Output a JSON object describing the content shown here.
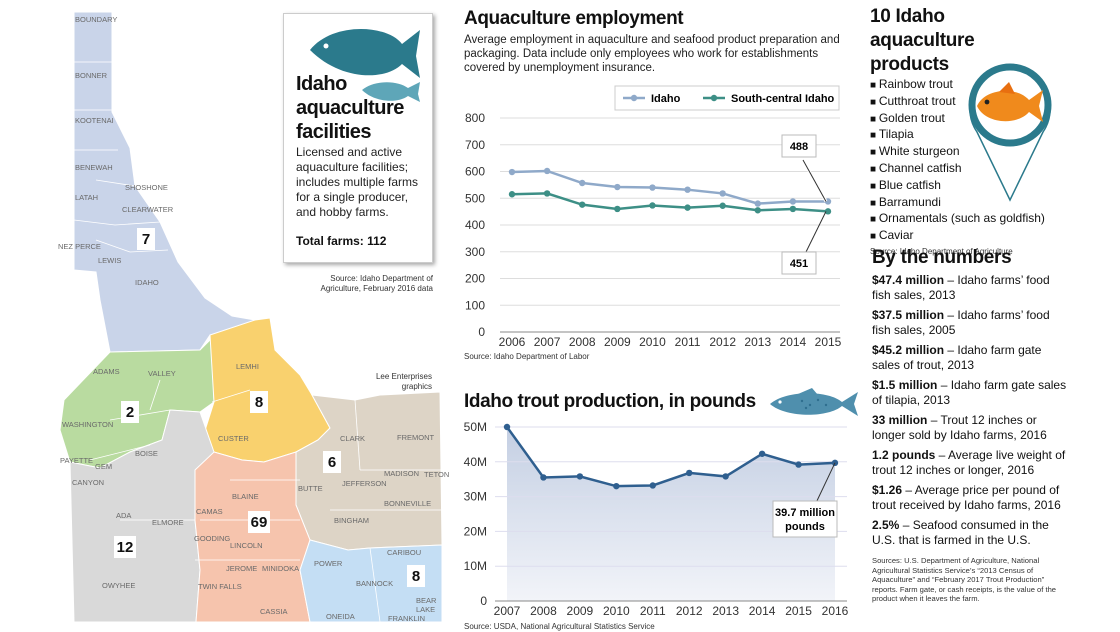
{
  "map": {
    "counties": [
      "BOUNDARY",
      "BONNER",
      "KOOTENAI",
      "BENEWAH",
      "SHOSHONE",
      "LATAH",
      "CLEARWATER",
      "NEZ PERCE",
      "LEWIS",
      "IDAHO",
      "ADAMS",
      "VALLEY",
      "LEMHI",
      "WASHINGTON",
      "PAYETTE",
      "GEM",
      "BOISE",
      "CUSTER",
      "CLARK",
      "FREMONT",
      "CANYON",
      "MADISON",
      "TETON",
      "JEFFERSON",
      "BUTTE",
      "BONNEVILLE",
      "ADA",
      "ELMORE",
      "BLAINE",
      "CAMAS",
      "GOODING",
      "LINCOLN",
      "BINGHAM",
      "JEROME",
      "MINIDOKA",
      "POWER",
      "CARIBOU",
      "BANNOCK",
      "OWYHEE",
      "TWIN FALLS",
      "CASSIA",
      "ONEIDA",
      "FRANKLIN",
      "BEAR LAKE"
    ],
    "region_counts": [
      "7",
      "2",
      "8",
      "6",
      "69",
      "12",
      "8"
    ],
    "credit": "Lee Enterprises graphics"
  },
  "facilities": {
    "title": "Idaho aquaculture facilities",
    "description": "Licensed and active aquaculture facilities; includes multiple farms for a single producer, and hobby farms.",
    "total": "Total farms: 112",
    "source": "Source: Idaho Department of Agriculture, February 2016 data"
  },
  "employment": {
    "title": "Aquaculture employment",
    "description": "Average employment in aquaculture and seafood product preparation and packaging. Data include only employees who work for establishments covered by unemployment insurance.",
    "source": "Source: Idaho Department of Labor",
    "label_idaho": "488",
    "label_sc": "451"
  },
  "trout": {
    "title": "Idaho trout production, in pounds",
    "source": "Source: USDA, National Agricultural Statistics Service",
    "callout_line1": "39.7 million",
    "callout_line2": "pounds"
  },
  "products": {
    "title": "10 Idaho aquaculture products",
    "items": [
      "Rainbow trout",
      "Cutthroat trout",
      "Golden trout",
      "Tilapia",
      "White sturgeon",
      "Channel catfish",
      "Blue catfish",
      "Barramundi",
      "Ornamentals (such as goldfish)",
      "Caviar"
    ],
    "source": "Source: Idaho Department of Agriculture"
  },
  "numbers": {
    "title": "By the numbers",
    "stats": [
      {
        "value": "$47.4 million",
        "text": " – Idaho farms’ food fish sales, 2013"
      },
      {
        "value": "$37.5 million",
        "text": " – Idaho farms’ food fish sales, 2005"
      },
      {
        "value": "$45.2 million",
        "text": " – Idaho farm gate sales of trout, 2013"
      },
      {
        "value": "$1.5 million",
        "text": " – Idaho farm gate sales of tilapia, 2013"
      },
      {
        "value": "33 million",
        "text": " – Trout 12 inches or longer sold by Idaho farms, 2016"
      },
      {
        "value": "1.2 pounds",
        "text": " – Average live weight of trout 12 inches or longer, 2016"
      },
      {
        "value": "$1.26",
        "text": " – Average price per pound of trout received by Idaho farms, 2016"
      },
      {
        "value": "2.5%",
        "text": " – Seafood consumed in the U.S. that is farmed in the U.S."
      }
    ],
    "source": "Sources: U.S. Department of Agriculture, National Agricultural Statistics Service’s “2013 Census of Aquaculture” and “February 2017 Trout Production” reports. Farm gate, or cash receipts, is the value of the product when it leaves the farm."
  },
  "chart_data": [
    {
      "type": "line",
      "x": [
        "2006",
        "2007",
        "2008",
        "2009",
        "2010",
        "2011",
        "2012",
        "2013",
        "2014",
        "2015"
      ],
      "series": [
        {
          "name": "Idaho",
          "color": "#8fa9c9",
          "values": [
            598,
            602,
            557,
            542,
            540,
            532,
            518,
            480,
            488,
            488
          ]
        },
        {
          "name": "South-central Idaho",
          "color": "#3d8f86",
          "values": [
            515,
            518,
            476,
            460,
            473,
            465,
            472,
            455,
            460,
            451
          ]
        }
      ],
      "yticks": [
        "0",
        "100",
        "200",
        "300",
        "400",
        "500",
        "600",
        "700",
        "800"
      ],
      "ylim": [
        0,
        800
      ],
      "grid": true,
      "legend": "top-right"
    },
    {
      "type": "area",
      "x": [
        "2007",
        "2008",
        "2009",
        "2010",
        "2011",
        "2012",
        "2013",
        "2014",
        "2015",
        "2016"
      ],
      "series": [
        {
          "color": "#2f5f8f",
          "values": [
            50,
            35.5,
            35.8,
            33,
            33.2,
            36.8,
            35.8,
            42.3,
            39.2,
            39.7
          ]
        }
      ],
      "yticks": [
        "0",
        "10M",
        "20M",
        "30M",
        "40M",
        "50M"
      ],
      "ylim": [
        0,
        50
      ],
      "grid": true
    }
  ]
}
